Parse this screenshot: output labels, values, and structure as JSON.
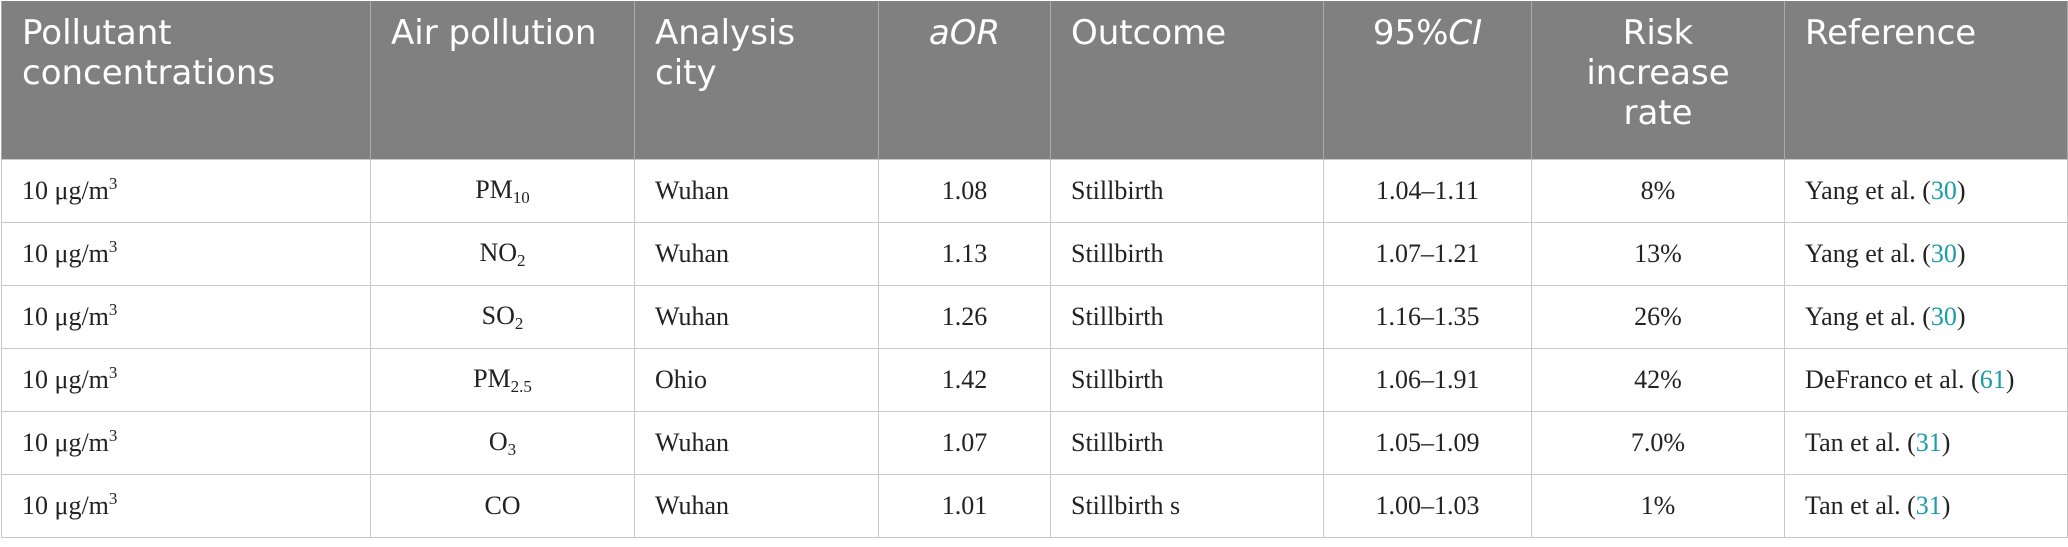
{
  "table": {
    "header": [
      {
        "lines": [
          "Pollutant",
          "concentrations"
        ],
        "align": "left"
      },
      {
        "lines": [
          "Air pollution"
        ],
        "align": "left"
      },
      {
        "lines": [
          "Analysis",
          "city"
        ],
        "align": "left"
      },
      {
        "parts": [
          {
            "text": "aOR",
            "italic": true
          }
        ],
        "align": "center"
      },
      {
        "lines": [
          "Outcome"
        ],
        "align": "left"
      },
      {
        "parts": [
          {
            "text": "95%",
            "italic": false
          },
          {
            "text": "CI",
            "italic": true
          }
        ],
        "align": "center"
      },
      {
        "lines": [
          "Risk",
          "increase",
          "rate"
        ],
        "align": "center"
      },
      {
        "lines": [
          "Reference"
        ],
        "align": "left"
      }
    ],
    "rows": [
      {
        "unit": {
          "base": "10 μg/m",
          "sup": "3"
        },
        "pollutant": {
          "base": "PM",
          "sub": "10"
        },
        "city": "Wuhan",
        "aor": "1.08",
        "outcome": "Stillbirth",
        "ci": "1.04–1.11",
        "rate": "8%",
        "ref": {
          "prefix": "Yang et al. (",
          "num": "30",
          "suffix": ")"
        }
      },
      {
        "unit": {
          "base": "10 μg/m",
          "sup": "3"
        },
        "pollutant": {
          "base": "NO",
          "sub": "2"
        },
        "city": "Wuhan",
        "aor": "1.13",
        "outcome": "Stillbirth",
        "ci": "1.07–1.21",
        "rate": "13%",
        "ref": {
          "prefix": "Yang et al. (",
          "num": "30",
          "suffix": ")"
        }
      },
      {
        "unit": {
          "base": "10 μg/m",
          "sup": "3"
        },
        "pollutant": {
          "base": "SO",
          "sub": "2"
        },
        "city": "Wuhan",
        "aor": "1.26",
        "outcome": "Stillbirth",
        "ci": "1.16–1.35",
        "rate": "26%",
        "ref": {
          "prefix": "Yang et al. (",
          "num": "30",
          "suffix": ")"
        }
      },
      {
        "unit": {
          "base": "10 μg/m",
          "sup": "3"
        },
        "pollutant": {
          "base": "PM",
          "sub": "2.5"
        },
        "city": "Ohio",
        "aor": "1.42",
        "outcome": "Stillbirth",
        "ci": "1.06–1.91",
        "rate": "42%",
        "ref": {
          "prefix": "DeFranco et al. (",
          "num": "61",
          "suffix": ")"
        }
      },
      {
        "unit": {
          "base": "10 μg/m",
          "sup": "3"
        },
        "pollutant": {
          "base": "O",
          "sub": "3"
        },
        "city": "Wuhan",
        "aor": "1.07",
        "outcome": "Stillbirth",
        "ci": "1.05–1.09",
        "rate": "7.0%",
        "ref": {
          "prefix": "Tan et al. (",
          "num": "31",
          "suffix": ")"
        }
      },
      {
        "unit": {
          "base": "10 μg/m",
          "sup": "3"
        },
        "pollutant": {
          "base": "CO",
          "sub": ""
        },
        "city": "Wuhan",
        "aor": "1.01",
        "outcome": "Stillbirth s",
        "ci": "1.00–1.03",
        "rate": "1%",
        "ref": {
          "prefix": "Tan et al. (",
          "num": "31",
          "suffix": ")"
        }
      }
    ]
  }
}
